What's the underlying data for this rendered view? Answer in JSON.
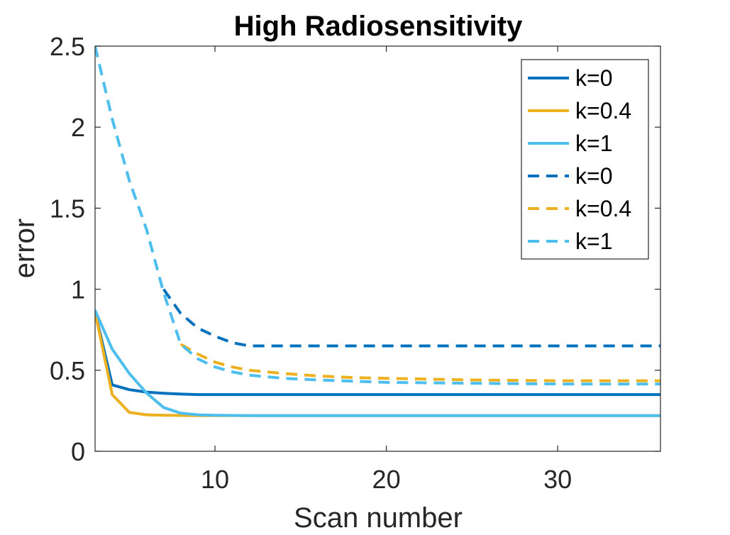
{
  "chart_data": {
    "type": "line",
    "title": "High Radiosensitivity",
    "xlabel": "Scan number",
    "ylabel": "error",
    "xlim": [
      3,
      36
    ],
    "ylim": [
      0,
      2.5
    ],
    "xticks": [
      10,
      20,
      30
    ],
    "xtick_labels": [
      "10",
      "20",
      "30"
    ],
    "yticks": [
      0,
      0.5,
      1,
      1.5,
      2,
      2.5
    ],
    "ytick_labels": [
      "0",
      "0.5",
      "1",
      "1.5",
      "2",
      "2.5"
    ],
    "grid": false,
    "legend_position": "top-right",
    "series": [
      {
        "name": "k=0",
        "style": "solid",
        "color": "#0072BD",
        "x": [
          3,
          4,
          5,
          6,
          7,
          8,
          9,
          10,
          12,
          15,
          20,
          25,
          30,
          36
        ],
        "y": [
          0.86,
          0.41,
          0.38,
          0.365,
          0.358,
          0.353,
          0.35,
          0.35,
          0.35,
          0.35,
          0.35,
          0.35,
          0.35,
          0.35
        ]
      },
      {
        "name": "k=0.4",
        "style": "solid",
        "color": "#EDB120",
        "x": [
          3,
          4,
          5,
          6,
          7,
          8,
          9,
          10,
          12,
          15,
          20,
          25,
          30,
          36
        ],
        "y": [
          0.86,
          0.35,
          0.24,
          0.225,
          0.222,
          0.221,
          0.22,
          0.22,
          0.22,
          0.22,
          0.22,
          0.22,
          0.22,
          0.22
        ]
      },
      {
        "name": "k=1",
        "style": "solid",
        "color": "#4DBEEE",
        "x": [
          3,
          4,
          5,
          6,
          7,
          8,
          9,
          10,
          12,
          15,
          20,
          25,
          30,
          36
        ],
        "y": [
          0.87,
          0.63,
          0.48,
          0.36,
          0.27,
          0.235,
          0.225,
          0.222,
          0.22,
          0.22,
          0.22,
          0.22,
          0.22,
          0.22
        ]
      },
      {
        "name": "k=0",
        "style": "dashed",
        "color": "#0072BD",
        "x": [
          7,
          8,
          9,
          10,
          11,
          12,
          13,
          15,
          20,
          25,
          30,
          36
        ],
        "y": [
          1.0,
          0.85,
          0.76,
          0.71,
          0.67,
          0.65,
          0.65,
          0.65,
          0.65,
          0.65,
          0.65,
          0.65
        ]
      },
      {
        "name": "k=0.4",
        "style": "dashed",
        "color": "#EDB120",
        "x": [
          8,
          9,
          10,
          11,
          12,
          14,
          16,
          18,
          20,
          25,
          30,
          36
        ],
        "y": [
          0.66,
          0.6,
          0.55,
          0.52,
          0.5,
          0.48,
          0.465,
          0.455,
          0.45,
          0.44,
          0.435,
          0.435
        ]
      },
      {
        "name": "k=1",
        "style": "dashed",
        "color": "#4DBEEE",
        "x": [
          3,
          4,
          5,
          6,
          7,
          8,
          9,
          10,
          11,
          12,
          14,
          16,
          20,
          25,
          30,
          36
        ],
        "y": [
          2.5,
          2.05,
          1.67,
          1.37,
          0.98,
          0.66,
          0.57,
          0.52,
          0.49,
          0.47,
          0.45,
          0.44,
          0.425,
          0.42,
          0.415,
          0.415
        ]
      }
    ]
  }
}
